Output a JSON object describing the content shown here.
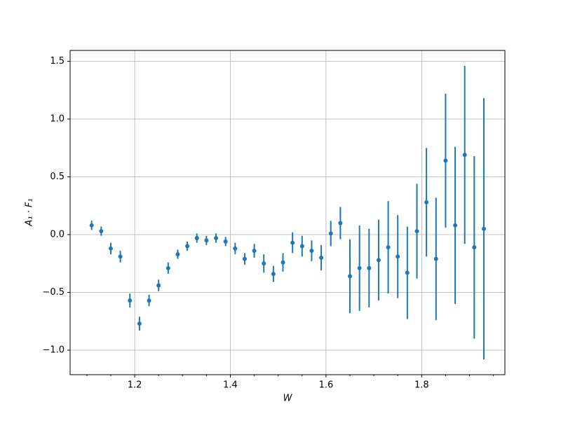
{
  "chart_data": {
    "type": "errorbar",
    "xlabel": "W",
    "ylabel": "A₁ · F₁",
    "x": [
      1.11,
      1.13,
      1.15,
      1.17,
      1.19,
      1.21,
      1.23,
      1.25,
      1.27,
      1.29,
      1.31,
      1.33,
      1.35,
      1.37,
      1.39,
      1.41,
      1.43,
      1.45,
      1.47,
      1.49,
      1.51,
      1.53,
      1.55,
      1.57,
      1.59,
      1.61,
      1.63,
      1.65,
      1.67,
      1.69,
      1.71,
      1.73,
      1.75,
      1.77,
      1.79,
      1.81,
      1.83,
      1.85,
      1.87,
      1.89,
      1.91,
      1.93
    ],
    "series": [
      {
        "color": "#1f77b4",
        "values": [
          0.08,
          0.03,
          -0.12,
          -0.19,
          -0.57,
          -0.77,
          -0.57,
          -0.44,
          -0.29,
          -0.17,
          -0.1,
          -0.03,
          -0.05,
          -0.03,
          -0.06,
          -0.12,
          -0.21,
          -0.14,
          -0.25,
          -0.34,
          -0.24,
          -0.07,
          -0.1,
          -0.14,
          -0.2,
          0.01,
          0.1,
          -0.36,
          -0.29,
          -0.29,
          -0.22,
          -0.11,
          -0.19,
          -0.33,
          0.03,
          0.28,
          -0.21,
          0.64,
          0.08,
          0.69,
          -0.11,
          0.05
        ],
        "errors": [
          0.04,
          0.04,
          0.05,
          0.05,
          0.06,
          0.06,
          0.05,
          0.05,
          0.05,
          0.04,
          0.04,
          0.04,
          0.04,
          0.04,
          0.04,
          0.05,
          0.05,
          0.06,
          0.08,
          0.07,
          0.08,
          0.09,
          0.09,
          0.09,
          0.11,
          0.11,
          0.14,
          0.32,
          0.37,
          0.34,
          0.35,
          0.4,
          0.36,
          0.4,
          0.41,
          0.47,
          0.53,
          0.58,
          0.68,
          0.77,
          0.79,
          1.13
        ]
      }
    ],
    "xlim": [
      1.065,
      1.974
    ],
    "ylim": [
      -1.212,
      1.594
    ],
    "xticks": [
      1.2,
      1.4,
      1.6,
      1.8
    ],
    "xminorticks": [
      1.1,
      1.15,
      1.25,
      1.3,
      1.35,
      1.45,
      1.5,
      1.55,
      1.65,
      1.7,
      1.75,
      1.85,
      1.9,
      1.95
    ],
    "yticks": [
      {
        "value": -1.0,
        "label": "−1.0"
      },
      {
        "value": -0.5,
        "label": "−0.5"
      },
      {
        "value": 0,
        "label": "0.0"
      },
      {
        "value": 0.5,
        "label": "0.5"
      },
      {
        "value": 1.0,
        "label": "1.0"
      },
      {
        "value": 1.5,
        "label": "1.5"
      }
    ],
    "grid": true
  }
}
